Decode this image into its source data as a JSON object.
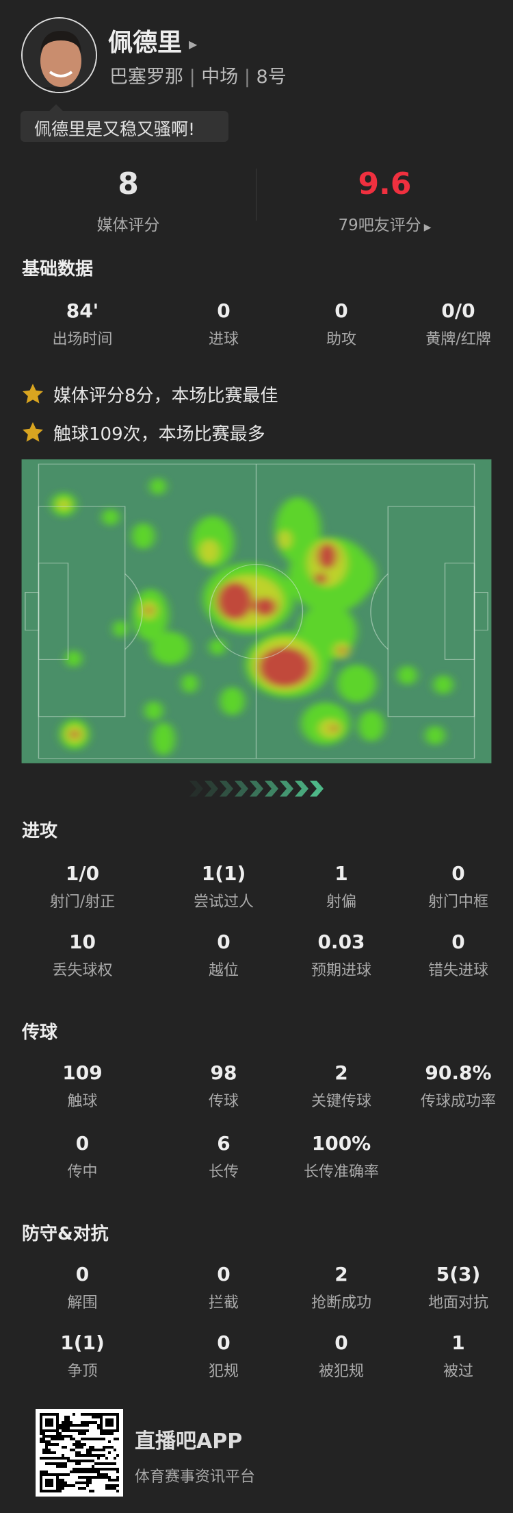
{
  "player": {
    "name": "佩德里",
    "team": "巴塞罗那",
    "position": "中场",
    "number": "8号",
    "comment": "佩德里是又稳又骚啊!"
  },
  "ratings": {
    "media_value": "8",
    "media_label": "媒体评分",
    "fan_value": "9.6",
    "fan_label": "79吧友评分",
    "fan_color": "#f0303f"
  },
  "basic": {
    "title": "基础数据",
    "stats": [
      {
        "v": "84'",
        "l": "出场时间"
      },
      {
        "v": "0",
        "l": "进球"
      },
      {
        "v": "0",
        "l": "助攻"
      },
      {
        "v": "0/0",
        "l": "黄牌/红牌"
      }
    ]
  },
  "highlights": [
    "媒体评分8分，本场比赛最佳",
    "触球109次，本场比赛最多"
  ],
  "attack": {
    "title": "进攻",
    "rows": [
      [
        {
          "v": "1/0",
          "l": "射门/射正"
        },
        {
          "v": "1(1)",
          "l": "尝试过人"
        },
        {
          "v": "1",
          "l": "射偏"
        },
        {
          "v": "0",
          "l": "射门中框"
        }
      ],
      [
        {
          "v": "10",
          "l": "丢失球权"
        },
        {
          "v": "0",
          "l": "越位"
        },
        {
          "v": "0.03",
          "l": "预期进球"
        },
        {
          "v": "0",
          "l": "错失进球"
        }
      ]
    ]
  },
  "passing": {
    "title": "传球",
    "rows": [
      [
        {
          "v": "109",
          "l": "触球"
        },
        {
          "v": "98",
          "l": "传球"
        },
        {
          "v": "2",
          "l": "关键传球"
        },
        {
          "v": "90.8%",
          "l": "传球成功率"
        }
      ],
      [
        {
          "v": "0",
          "l": "传中"
        },
        {
          "v": "6",
          "l": "长传"
        },
        {
          "v": "100%",
          "l": "长传准确率"
        }
      ]
    ]
  },
  "defense": {
    "title": "防守&对抗",
    "rows": [
      [
        {
          "v": "0",
          "l": "解围"
        },
        {
          "v": "0",
          "l": "拦截"
        },
        {
          "v": "2",
          "l": "抢断成功"
        },
        {
          "v": "5(3)",
          "l": "地面对抗"
        }
      ],
      [
        {
          "v": "1(1)",
          "l": "争顶"
        },
        {
          "v": "0",
          "l": "犯规"
        },
        {
          "v": "0",
          "l": "被犯规"
        },
        {
          "v": "1",
          "l": "被过"
        }
      ]
    ]
  },
  "footer": {
    "app_name": "直播吧APP",
    "tagline": "体育赛事资讯平台"
  },
  "colors": {
    "background": "#232323",
    "pitch": "#4a8f68",
    "star": "#d9a520"
  }
}
